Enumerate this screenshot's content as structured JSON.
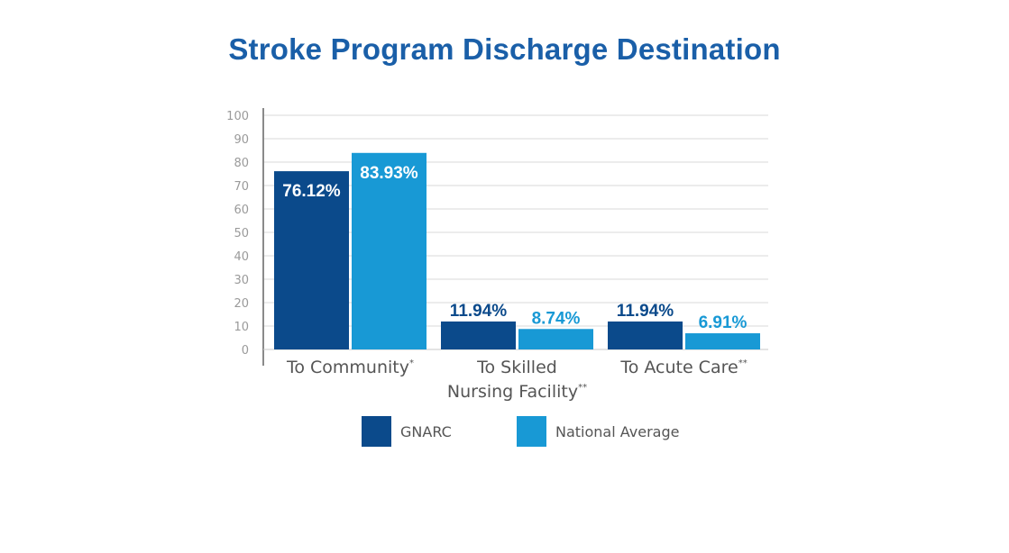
{
  "chart_data": {
    "type": "bar",
    "title": "Stroke Program Discharge Destination",
    "title_color": "#1a5fa8",
    "categories": [
      [
        "To Community"
      ],
      [
        "To Skilled",
        "Nursing Facility"
      ],
      [
        "To Acute Care"
      ]
    ],
    "category_marks": [
      "*",
      "**",
      "**"
    ],
    "series": [
      {
        "name": "GNARC",
        "values": [
          76.12,
          11.94,
          11.94
        ],
        "labels": [
          "76.12%",
          "11.94%",
          "11.94%"
        ],
        "color": "#0b4a8b"
      },
      {
        "name": "National Average",
        "values": [
          83.93,
          8.74,
          6.91
        ],
        "labels": [
          "83.93%",
          "8.74%",
          "6.91%"
        ],
        "color": "#1899d5"
      }
    ],
    "ylim": [
      0,
      100
    ],
    "yticks": [
      0,
      10,
      20,
      30,
      40,
      50,
      60,
      70,
      80,
      90,
      100
    ],
    "grid": true,
    "legend_position": "bottom-center",
    "first_bar_label_position": "inside",
    "other_bar_label_position": "above"
  }
}
